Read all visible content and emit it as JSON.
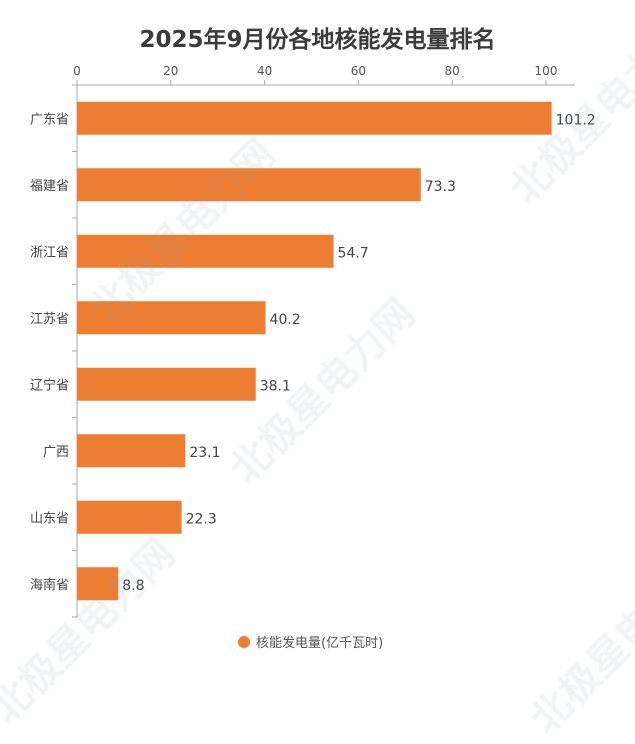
{
  "watermark": "北极星电力网",
  "chart_data": {
    "type": "bar",
    "orientation": "horizontal",
    "title": "2025年9月份各地核能发电量排名",
    "categories": [
      "广东省",
      "福建省",
      "浙江省",
      "江苏省",
      "辽宁省",
      "广西",
      "山东省",
      "海南省"
    ],
    "series": [
      {
        "name": "核能发电量(亿千瓦时)",
        "values": [
          101.2,
          73.3,
          54.7,
          40.2,
          38.1,
          23.1,
          22.3,
          8.8
        ],
        "color": "#ed7d31"
      }
    ],
    "xticks": [
      0,
      20,
      40,
      60,
      80,
      100
    ],
    "xaxis_position": "top",
    "xlim": [
      0,
      106
    ],
    "grid": false,
    "legend_position": "bottom",
    "data_labels": true
  }
}
